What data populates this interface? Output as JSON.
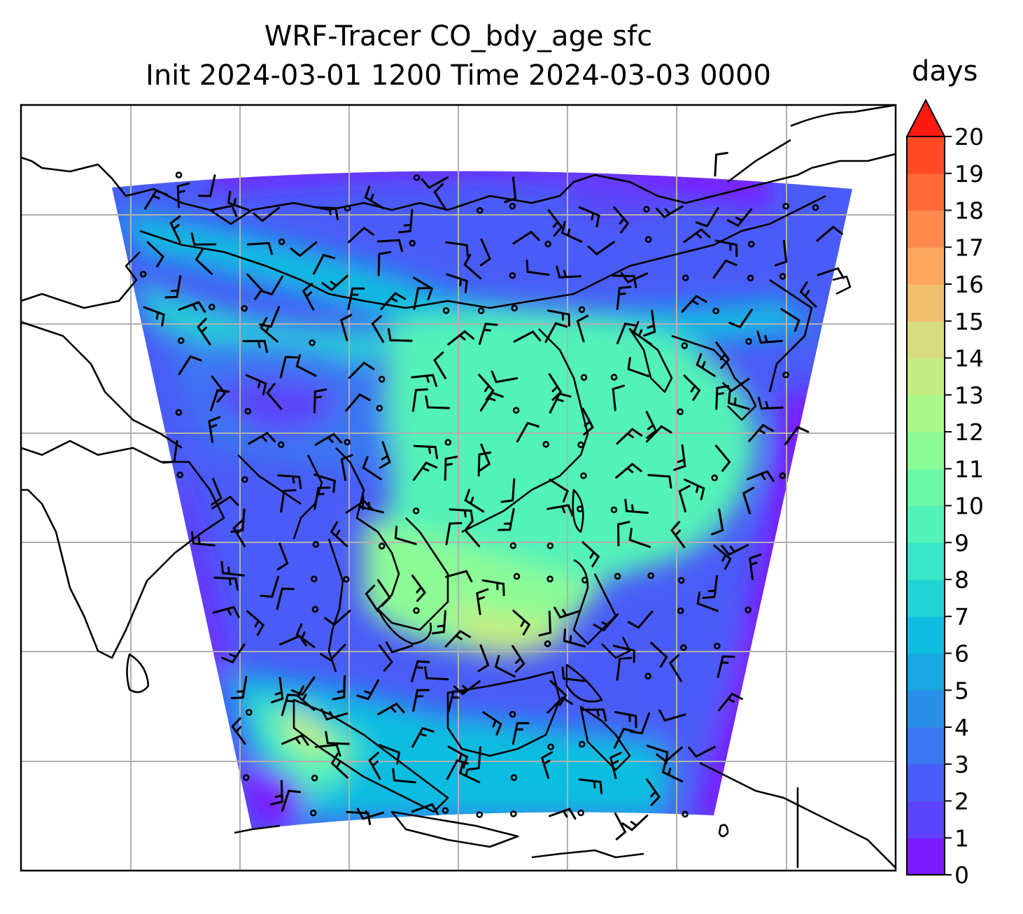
{
  "title": {
    "line1": "WRF-Tracer CO_bdy_age sfc",
    "line2": "Init 2024-03-01 1200 Time 2024-03-03 0000"
  },
  "colorbar": {
    "label": "days",
    "ticks": [
      "0",
      "1",
      "2",
      "3",
      "4",
      "5",
      "6",
      "7",
      "8",
      "9",
      "10",
      "11",
      "12",
      "13",
      "14",
      "15",
      "16",
      "17",
      "18",
      "19",
      "20"
    ],
    "extend": "max",
    "colors": [
      "#7a1cff",
      "#5b44fb",
      "#4a5cf7",
      "#3a77f1",
      "#2a8fe9",
      "#1aa6e0",
      "#0fbde0",
      "#22d3d6",
      "#3be6c7",
      "#52f2b8",
      "#6bf9a6",
      "#8dfc96",
      "#aaf88a",
      "#c4ee84",
      "#d8dc7e",
      "#f0c06e",
      "#fca65e",
      "#ff8a4c",
      "#ff6a38",
      "#ff4a25",
      "#ff1a0f"
    ]
  },
  "map": {
    "field_legend": "CO_bdy_age",
    "domain_colors": {
      "background_low": "#6c2cff",
      "mid_cyan": "#1bc3e4",
      "green": "#5af3b0",
      "high": "#c6ef8a",
      "border": "#000000",
      "grid": "#b0b0b0"
    },
    "icons": [
      "wind-barb-icon",
      "calm-circle-icon"
    ]
  }
}
